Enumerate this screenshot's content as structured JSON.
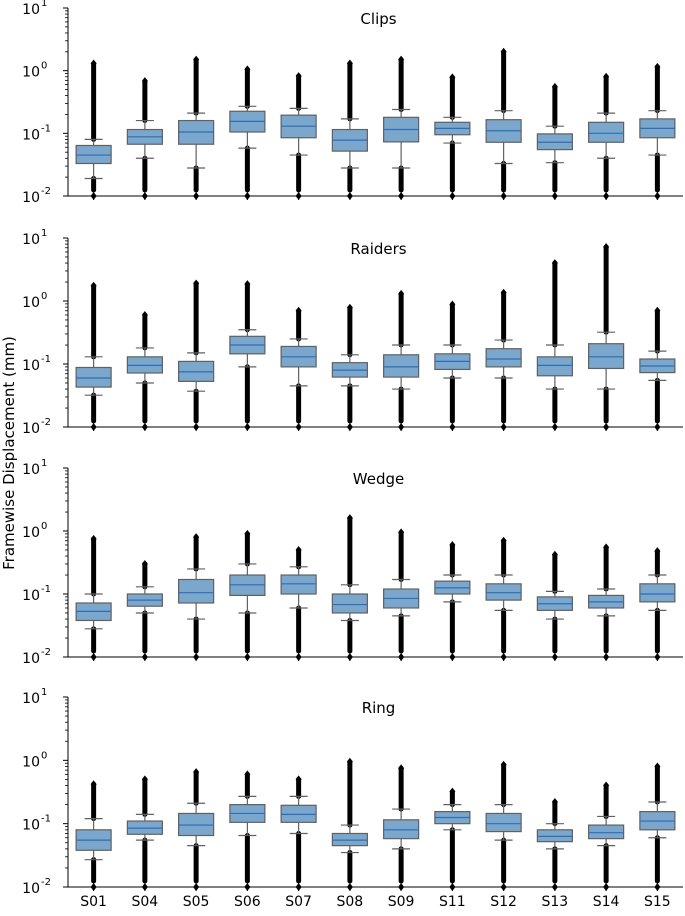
{
  "figure": {
    "ylabel": "Framewise Displacement (mm)"
  },
  "style": {
    "box_fill": "#7BA7CC",
    "box_edge": "#606060",
    "median_color": "#2F6DB5",
    "flier_color": "#000000"
  },
  "chart_data": [
    {
      "type": "box",
      "title": "Clips",
      "yscale": "log",
      "ylim": [
        0.01,
        10
      ],
      "yticks": [
        0.01,
        0.1,
        1,
        10
      ],
      "ytick_labels": [
        {
          "base": "10",
          "exp": "-2"
        },
        {
          "base": "10",
          "exp": "-1"
        },
        {
          "base": "10",
          "exp": "0"
        },
        {
          "base": "10",
          "exp": "1"
        }
      ],
      "categories": [
        "S01",
        "S04",
        "S05",
        "S06",
        "S07",
        "S08",
        "S09",
        "S11",
        "S12",
        "S13",
        "S14",
        "S15"
      ],
      "boxes": [
        {
          "lw": 0.019,
          "q1": 0.033,
          "med": 0.045,
          "q3": 0.064,
          "uw": 0.08,
          "fl_lo": [
            0.01,
            0.019
          ],
          "fl_hi": [
            0.08,
            1.3
          ]
        },
        {
          "lw": 0.04,
          "q1": 0.067,
          "med": 0.088,
          "q3": 0.115,
          "uw": 0.16,
          "fl_lo": [
            0.01,
            0.04
          ],
          "fl_hi": [
            0.16,
            0.68
          ]
        },
        {
          "lw": 0.028,
          "q1": 0.067,
          "med": 0.105,
          "q3": 0.16,
          "uw": 0.21,
          "fl_lo": [
            0.01,
            0.028
          ],
          "fl_hi": [
            0.21,
            1.5
          ]
        },
        {
          "lw": 0.058,
          "q1": 0.105,
          "med": 0.155,
          "q3": 0.225,
          "uw": 0.27,
          "fl_lo": [
            0.01,
            0.058
          ],
          "fl_hi": [
            0.27,
            1.05
          ]
        },
        {
          "lw": 0.045,
          "q1": 0.085,
          "med": 0.13,
          "q3": 0.195,
          "uw": 0.25,
          "fl_lo": [
            0.01,
            0.045
          ],
          "fl_hi": [
            0.25,
            0.82
          ]
        },
        {
          "lw": 0.028,
          "q1": 0.052,
          "med": 0.078,
          "q3": 0.115,
          "uw": 0.17,
          "fl_lo": [
            0.01,
            0.028
          ],
          "fl_hi": [
            0.17,
            1.3
          ]
        },
        {
          "lw": 0.028,
          "q1": 0.073,
          "med": 0.115,
          "q3": 0.18,
          "uw": 0.24,
          "fl_lo": [
            0.01,
            0.028
          ],
          "fl_hi": [
            0.24,
            1.5
          ]
        },
        {
          "lw": 0.07,
          "q1": 0.095,
          "med": 0.12,
          "q3": 0.15,
          "uw": 0.18,
          "fl_lo": [
            0.01,
            0.07
          ],
          "fl_hi": [
            0.18,
            0.78
          ]
        },
        {
          "lw": 0.033,
          "q1": 0.072,
          "med": 0.11,
          "q3": 0.165,
          "uw": 0.23,
          "fl_lo": [
            0.01,
            0.033
          ],
          "fl_hi": [
            0.23,
            2.0
          ]
        },
        {
          "lw": 0.034,
          "q1": 0.055,
          "med": 0.072,
          "q3": 0.098,
          "uw": 0.13,
          "fl_lo": [
            0.01,
            0.034
          ],
          "fl_hi": [
            0.13,
            0.55
          ]
        },
        {
          "lw": 0.04,
          "q1": 0.072,
          "med": 0.1,
          "q3": 0.15,
          "uw": 0.21,
          "fl_lo": [
            0.01,
            0.04
          ],
          "fl_hi": [
            0.21,
            0.8
          ]
        },
        {
          "lw": 0.045,
          "q1": 0.085,
          "med": 0.12,
          "q3": 0.17,
          "uw": 0.23,
          "fl_lo": [
            0.01,
            0.045
          ],
          "fl_hi": [
            0.23,
            1.15
          ]
        }
      ]
    },
    {
      "type": "box",
      "title": "Raiders",
      "yscale": "log",
      "ylim": [
        0.01,
        10
      ],
      "yticks": [
        0.01,
        0.1,
        1,
        10
      ],
      "ytick_labels": [
        {
          "base": "10",
          "exp": "-2"
        },
        {
          "base": "10",
          "exp": "-1"
        },
        {
          "base": "10",
          "exp": "0"
        },
        {
          "base": "10",
          "exp": "1"
        }
      ],
      "categories": [
        "S01",
        "S04",
        "S05",
        "S06",
        "S07",
        "S08",
        "S09",
        "S11",
        "S12",
        "S13",
        "S14",
        "S15"
      ],
      "boxes": [
        {
          "lw": 0.032,
          "q1": 0.043,
          "med": 0.06,
          "q3": 0.088,
          "uw": 0.13,
          "fl_lo": [
            0.01,
            0.032
          ],
          "fl_hi": [
            0.13,
            1.75
          ]
        },
        {
          "lw": 0.05,
          "q1": 0.072,
          "med": 0.095,
          "q3": 0.13,
          "uw": 0.18,
          "fl_lo": [
            0.01,
            0.05
          ],
          "fl_hi": [
            0.18,
            0.6
          ]
        },
        {
          "lw": 0.037,
          "q1": 0.053,
          "med": 0.075,
          "q3": 0.11,
          "uw": 0.15,
          "fl_lo": [
            0.01,
            0.037
          ],
          "fl_hi": [
            0.15,
            1.9
          ]
        },
        {
          "lw": 0.09,
          "q1": 0.145,
          "med": 0.2,
          "q3": 0.275,
          "uw": 0.35,
          "fl_lo": [
            0.01,
            0.09
          ],
          "fl_hi": [
            0.35,
            1.85
          ]
        },
        {
          "lw": 0.045,
          "q1": 0.09,
          "med": 0.13,
          "q3": 0.19,
          "uw": 0.25,
          "fl_lo": [
            0.01,
            0.045
          ],
          "fl_hi": [
            0.25,
            0.7
          ]
        },
        {
          "lw": 0.045,
          "q1": 0.062,
          "med": 0.08,
          "q3": 0.105,
          "uw": 0.14,
          "fl_lo": [
            0.01,
            0.045
          ],
          "fl_hi": [
            0.14,
            0.78
          ]
        },
        {
          "lw": 0.04,
          "q1": 0.062,
          "med": 0.09,
          "q3": 0.14,
          "uw": 0.2,
          "fl_lo": [
            0.01,
            0.04
          ],
          "fl_hi": [
            0.2,
            1.3
          ]
        },
        {
          "lw": 0.06,
          "q1": 0.082,
          "med": 0.11,
          "q3": 0.145,
          "uw": 0.2,
          "fl_lo": [
            0.01,
            0.06
          ],
          "fl_hi": [
            0.2,
            0.88
          ]
        },
        {
          "lw": 0.06,
          "q1": 0.09,
          "med": 0.12,
          "q3": 0.175,
          "uw": 0.24,
          "fl_lo": [
            0.01,
            0.06
          ],
          "fl_hi": [
            0.24,
            1.35
          ]
        },
        {
          "lw": 0.04,
          "q1": 0.065,
          "med": 0.095,
          "q3": 0.13,
          "uw": 0.2,
          "fl_lo": [
            0.01,
            0.04
          ],
          "fl_hi": [
            0.2,
            4.0
          ]
        },
        {
          "lw": 0.04,
          "q1": 0.085,
          "med": 0.13,
          "q3": 0.21,
          "uw": 0.32,
          "fl_lo": [
            0.01,
            0.04
          ],
          "fl_hi": [
            0.32,
            7.2
          ]
        },
        {
          "lw": 0.055,
          "q1": 0.073,
          "med": 0.093,
          "q3": 0.12,
          "uw": 0.16,
          "fl_lo": [
            0.01,
            0.055
          ],
          "fl_hi": [
            0.16,
            0.7
          ]
        }
      ]
    },
    {
      "type": "box",
      "title": "Wedge",
      "yscale": "log",
      "ylim": [
        0.01,
        10
      ],
      "yticks": [
        0.01,
        0.1,
        1,
        10
      ],
      "ytick_labels": [
        {
          "base": "10",
          "exp": "-2"
        },
        {
          "base": "10",
          "exp": "-1"
        },
        {
          "base": "10",
          "exp": "0"
        },
        {
          "base": "10",
          "exp": "1"
        }
      ],
      "categories": [
        "S01",
        "S04",
        "S05",
        "S06",
        "S07",
        "S08",
        "S09",
        "S11",
        "S12",
        "S13",
        "S14",
        "S15"
      ],
      "boxes": [
        {
          "lw": 0.028,
          "q1": 0.038,
          "med": 0.053,
          "q3": 0.072,
          "uw": 0.1,
          "fl_lo": [
            0.01,
            0.028
          ],
          "fl_hi": [
            0.1,
            0.75
          ]
        },
        {
          "lw": 0.05,
          "q1": 0.064,
          "med": 0.08,
          "q3": 0.1,
          "uw": 0.13,
          "fl_lo": [
            0.01,
            0.05
          ],
          "fl_hi": [
            0.13,
            0.3
          ]
        },
        {
          "lw": 0.04,
          "q1": 0.072,
          "med": 0.105,
          "q3": 0.17,
          "uw": 0.25,
          "fl_lo": [
            0.01,
            0.04
          ],
          "fl_hi": [
            0.25,
            0.8
          ]
        },
        {
          "lw": 0.05,
          "q1": 0.095,
          "med": 0.14,
          "q3": 0.2,
          "uw": 0.3,
          "fl_lo": [
            0.01,
            0.05
          ],
          "fl_hi": [
            0.3,
            0.9
          ]
        },
        {
          "lw": 0.06,
          "q1": 0.1,
          "med": 0.145,
          "q3": 0.2,
          "uw": 0.27,
          "fl_lo": [
            0.01,
            0.06
          ],
          "fl_hi": [
            0.27,
            0.5
          ]
        },
        {
          "lw": 0.038,
          "q1": 0.05,
          "med": 0.068,
          "q3": 0.1,
          "uw": 0.14,
          "fl_lo": [
            0.01,
            0.038
          ],
          "fl_hi": [
            0.14,
            1.6
          ]
        },
        {
          "lw": 0.045,
          "q1": 0.06,
          "med": 0.085,
          "q3": 0.12,
          "uw": 0.17,
          "fl_lo": [
            0.01,
            0.045
          ],
          "fl_hi": [
            0.17,
            0.95
          ]
        },
        {
          "lw": 0.075,
          "q1": 0.1,
          "med": 0.125,
          "q3": 0.16,
          "uw": 0.2,
          "fl_lo": [
            0.01,
            0.075
          ],
          "fl_hi": [
            0.2,
            0.6
          ]
        },
        {
          "lw": 0.055,
          "q1": 0.08,
          "med": 0.105,
          "q3": 0.145,
          "uw": 0.2,
          "fl_lo": [
            0.01,
            0.055
          ],
          "fl_hi": [
            0.2,
            0.7
          ]
        },
        {
          "lw": 0.04,
          "q1": 0.055,
          "med": 0.07,
          "q3": 0.09,
          "uw": 0.11,
          "fl_lo": [
            0.01,
            0.04
          ],
          "fl_hi": [
            0.11,
            0.42
          ]
        },
        {
          "lw": 0.045,
          "q1": 0.06,
          "med": 0.075,
          "q3": 0.095,
          "uw": 0.12,
          "fl_lo": [
            0.01,
            0.045
          ],
          "fl_hi": [
            0.12,
            0.55
          ]
        },
        {
          "lw": 0.055,
          "q1": 0.075,
          "med": 0.1,
          "q3": 0.145,
          "uw": 0.2,
          "fl_lo": [
            0.01,
            0.055
          ],
          "fl_hi": [
            0.2,
            0.48
          ]
        }
      ]
    },
    {
      "type": "box",
      "title": "Ring",
      "yscale": "log",
      "ylim": [
        0.01,
        10
      ],
      "yticks": [
        0.01,
        0.1,
        1,
        10
      ],
      "ytick_labels": [
        {
          "base": "10",
          "exp": "-2"
        },
        {
          "base": "10",
          "exp": "-1"
        },
        {
          "base": "10",
          "exp": "0"
        },
        {
          "base": "10",
          "exp": "1"
        }
      ],
      "categories": [
        "S01",
        "S04",
        "S05",
        "S06",
        "S07",
        "S08",
        "S09",
        "S11",
        "S12",
        "S13",
        "S14",
        "S15"
      ],
      "boxes": [
        {
          "lw": 0.027,
          "q1": 0.038,
          "med": 0.055,
          "q3": 0.08,
          "uw": 0.12,
          "fl_lo": [
            0.01,
            0.027
          ],
          "fl_hi": [
            0.12,
            0.42
          ]
        },
        {
          "lw": 0.055,
          "q1": 0.068,
          "med": 0.085,
          "q3": 0.11,
          "uw": 0.14,
          "fl_lo": [
            0.01,
            0.055
          ],
          "fl_hi": [
            0.14,
            0.5
          ]
        },
        {
          "lw": 0.045,
          "q1": 0.065,
          "med": 0.095,
          "q3": 0.145,
          "uw": 0.21,
          "fl_lo": [
            0.01,
            0.045
          ],
          "fl_hi": [
            0.21,
            0.65
          ]
        },
        {
          "lw": 0.065,
          "q1": 0.105,
          "med": 0.145,
          "q3": 0.2,
          "uw": 0.27,
          "fl_lo": [
            0.01,
            0.065
          ],
          "fl_hi": [
            0.27,
            0.6
          ]
        },
        {
          "lw": 0.07,
          "q1": 0.105,
          "med": 0.14,
          "q3": 0.195,
          "uw": 0.27,
          "fl_lo": [
            0.01,
            0.07
          ],
          "fl_hi": [
            0.27,
            0.5
          ]
        },
        {
          "lw": 0.035,
          "q1": 0.045,
          "med": 0.055,
          "q3": 0.07,
          "uw": 0.095,
          "fl_lo": [
            0.01,
            0.035
          ],
          "fl_hi": [
            0.095,
            0.95
          ]
        },
        {
          "lw": 0.04,
          "q1": 0.058,
          "med": 0.08,
          "q3": 0.115,
          "uw": 0.17,
          "fl_lo": [
            0.01,
            0.04
          ],
          "fl_hi": [
            0.17,
            0.75
          ]
        },
        {
          "lw": 0.08,
          "q1": 0.1,
          "med": 0.125,
          "q3": 0.155,
          "uw": 0.2,
          "fl_lo": [
            0.01,
            0.08
          ],
          "fl_hi": [
            0.2,
            0.32
          ]
        },
        {
          "lw": 0.055,
          "q1": 0.075,
          "med": 0.1,
          "q3": 0.145,
          "uw": 0.2,
          "fl_lo": [
            0.01,
            0.055
          ],
          "fl_hi": [
            0.2,
            0.85
          ]
        },
        {
          "lw": 0.04,
          "q1": 0.052,
          "med": 0.063,
          "q3": 0.08,
          "uw": 0.1,
          "fl_lo": [
            0.01,
            0.04
          ],
          "fl_hi": [
            0.1,
            0.22
          ]
        },
        {
          "lw": 0.045,
          "q1": 0.058,
          "med": 0.072,
          "q3": 0.095,
          "uw": 0.13,
          "fl_lo": [
            0.01,
            0.045
          ],
          "fl_hi": [
            0.13,
            0.4
          ]
        },
        {
          "lw": 0.06,
          "q1": 0.08,
          "med": 0.11,
          "q3": 0.155,
          "uw": 0.22,
          "fl_lo": [
            0.01,
            0.06
          ],
          "fl_hi": [
            0.22,
            0.8
          ]
        }
      ]
    }
  ]
}
